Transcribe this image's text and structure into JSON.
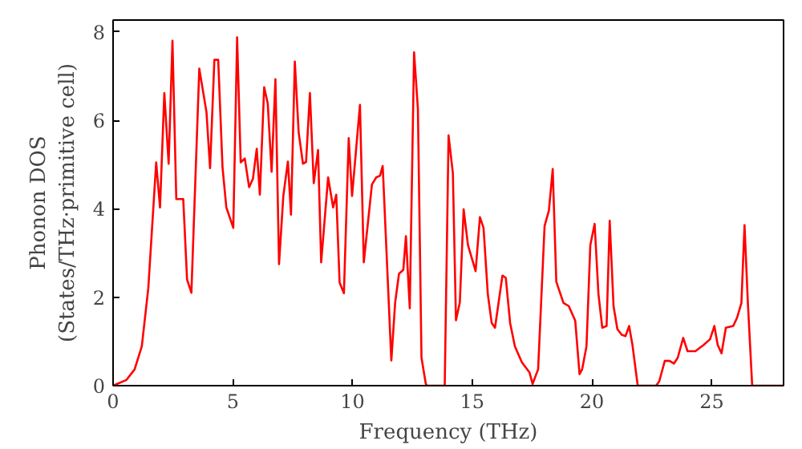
{
  "chart_data": {
    "type": "line",
    "xlabel": "Frequency (THz)",
    "ylabel": "Phonon DOS\n(States/THz·primitive cell)",
    "xlim": [
      0,
      28
    ],
    "ylim": [
      0,
      8.27
    ],
    "xticks": [
      0,
      5,
      10,
      15,
      20,
      25
    ],
    "yticks": [
      0,
      2,
      4,
      6,
      8
    ],
    "grid": false,
    "series": [
      {
        "color": "#ff0000",
        "x": [
          0,
          0.56,
          0.9,
          1.2,
          1.47,
          1.8,
          1.96,
          2.14,
          2.32,
          2.48,
          2.64,
          2.93,
          3.09,
          3.27,
          3.6,
          3.9,
          4.05,
          4.23,
          4.39,
          4.57,
          4.73,
          5.02,
          5.18,
          5.33,
          5.5,
          5.68,
          5.84,
          6.0,
          6.13,
          6.31,
          6.46,
          6.62,
          6.78,
          6.93,
          7.11,
          7.3,
          7.43,
          7.59,
          7.75,
          7.93,
          8.06,
          8.22,
          8.38,
          8.56,
          8.69,
          8.98,
          9.19,
          9.32,
          9.46,
          9.64,
          9.84,
          9.98,
          10.31,
          10.47,
          10.81,
          10.99,
          11.15,
          11.26,
          11.62,
          11.78,
          11.94,
          12.12,
          12.23,
          12.39,
          12.57,
          12.73,
          12.88,
          13.06,
          13.11,
          13.85,
          14.01,
          14.19,
          14.32,
          14.48,
          14.64,
          14.82,
          15.14,
          15.32,
          15.47,
          15.65,
          15.81,
          15.95,
          16.26,
          16.4,
          16.58,
          16.78,
          17.07,
          17.39,
          17.52,
          17.75,
          18.02,
          18.2,
          18.36,
          18.51,
          18.81,
          19.03,
          19.3,
          19.48,
          19.59,
          19.77,
          19.93,
          20.11,
          20.27,
          20.43,
          20.61,
          20.74,
          20.9,
          21.06,
          21.24,
          21.4,
          21.55,
          21.69,
          21.91,
          22.68,
          22.81,
          23.04,
          23.24,
          23.42,
          23.58,
          23.81,
          23.99,
          24.32,
          24.66,
          24.93,
          25.11,
          25.25,
          25.41,
          25.59,
          25.9,
          26.06,
          26.24,
          26.37,
          26.51,
          26.69,
          28
        ],
        "values": [
          0,
          0.13,
          0.37,
          0.89,
          2.2,
          5.05,
          4.03,
          6.62,
          5.02,
          7.8,
          4.22,
          4.22,
          2.4,
          2.1,
          7.17,
          6.19,
          4.92,
          7.37,
          7.37,
          4.94,
          4.03,
          3.57,
          7.88,
          5.05,
          5.14,
          4.49,
          4.68,
          5.36,
          4.32,
          6.75,
          6.38,
          4.84,
          6.93,
          2.75,
          4.29,
          5.07,
          3.87,
          7.33,
          5.73,
          5.02,
          5.06,
          6.62,
          4.58,
          5.33,
          2.79,
          4.71,
          4.03,
          4.32,
          2.33,
          2.09,
          5.6,
          4.29,
          6.35,
          2.79,
          4.55,
          4.71,
          4.75,
          4.97,
          0.57,
          1.88,
          2.53,
          2.62,
          3.38,
          1.75,
          7.54,
          6.26,
          0.63,
          0.04,
          0,
          0,
          5.66,
          4.81,
          1.48,
          1.88,
          3.99,
          3.18,
          2.59,
          3.81,
          3.57,
          2.07,
          1.42,
          1.31,
          2.49,
          2.44,
          1.42,
          0.89,
          0.53,
          0.3,
          0.04,
          0.37,
          3.61,
          3.96,
          4.9,
          2.35,
          1.87,
          1.8,
          1.47,
          0.26,
          0.37,
          0.89,
          3.18,
          3.66,
          2.07,
          1.31,
          1.35,
          3.73,
          1.8,
          1.28,
          1.15,
          1.12,
          1.35,
          0.92,
          0,
          0,
          0.1,
          0.56,
          0.56,
          0.5,
          0.63,
          1.08,
          0.78,
          0.78,
          0.92,
          1.05,
          1.35,
          0.92,
          0.73,
          1.31,
          1.35,
          1.54,
          1.87,
          3.63,
          1.87,
          0,
          0
        ]
      }
    ]
  }
}
